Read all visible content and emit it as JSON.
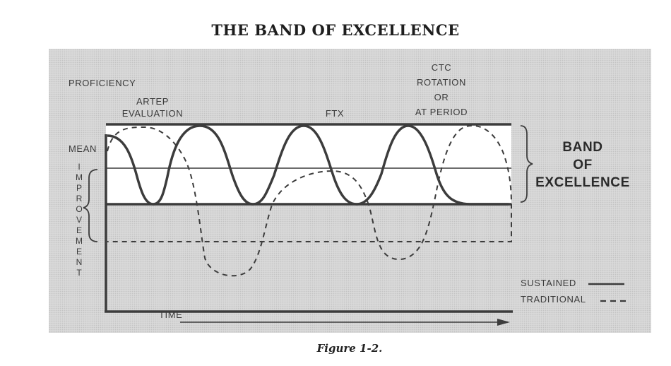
{
  "title": "THE BAND OF EXCELLENCE",
  "caption": "Figure 1-2.",
  "diagram": {
    "y_axis_label": "PROFICIENCY",
    "x_axis_label": "TIME",
    "mean_label": "MEAN",
    "improvement_label": "IMPROVEMENT",
    "annotations": {
      "artep_line1": "ARTEP",
      "artep_line2": "EVALUATION",
      "ftx": "FTX",
      "ctc_line1": "CTC",
      "ctc_line2": "ROTATION",
      "ctc_line3": "OR",
      "ctc_line4": "AT PERIOD"
    },
    "band_label": [
      "BAND",
      "OF",
      "EXCELLENCE"
    ],
    "legend": {
      "sustained": "SUSTAINED",
      "traditional": "TRADITIONAL"
    }
  },
  "colors": {
    "panel_background": "#d9d9d9",
    "band_fill": "#ffffff",
    "line": "#3c3c3c"
  }
}
